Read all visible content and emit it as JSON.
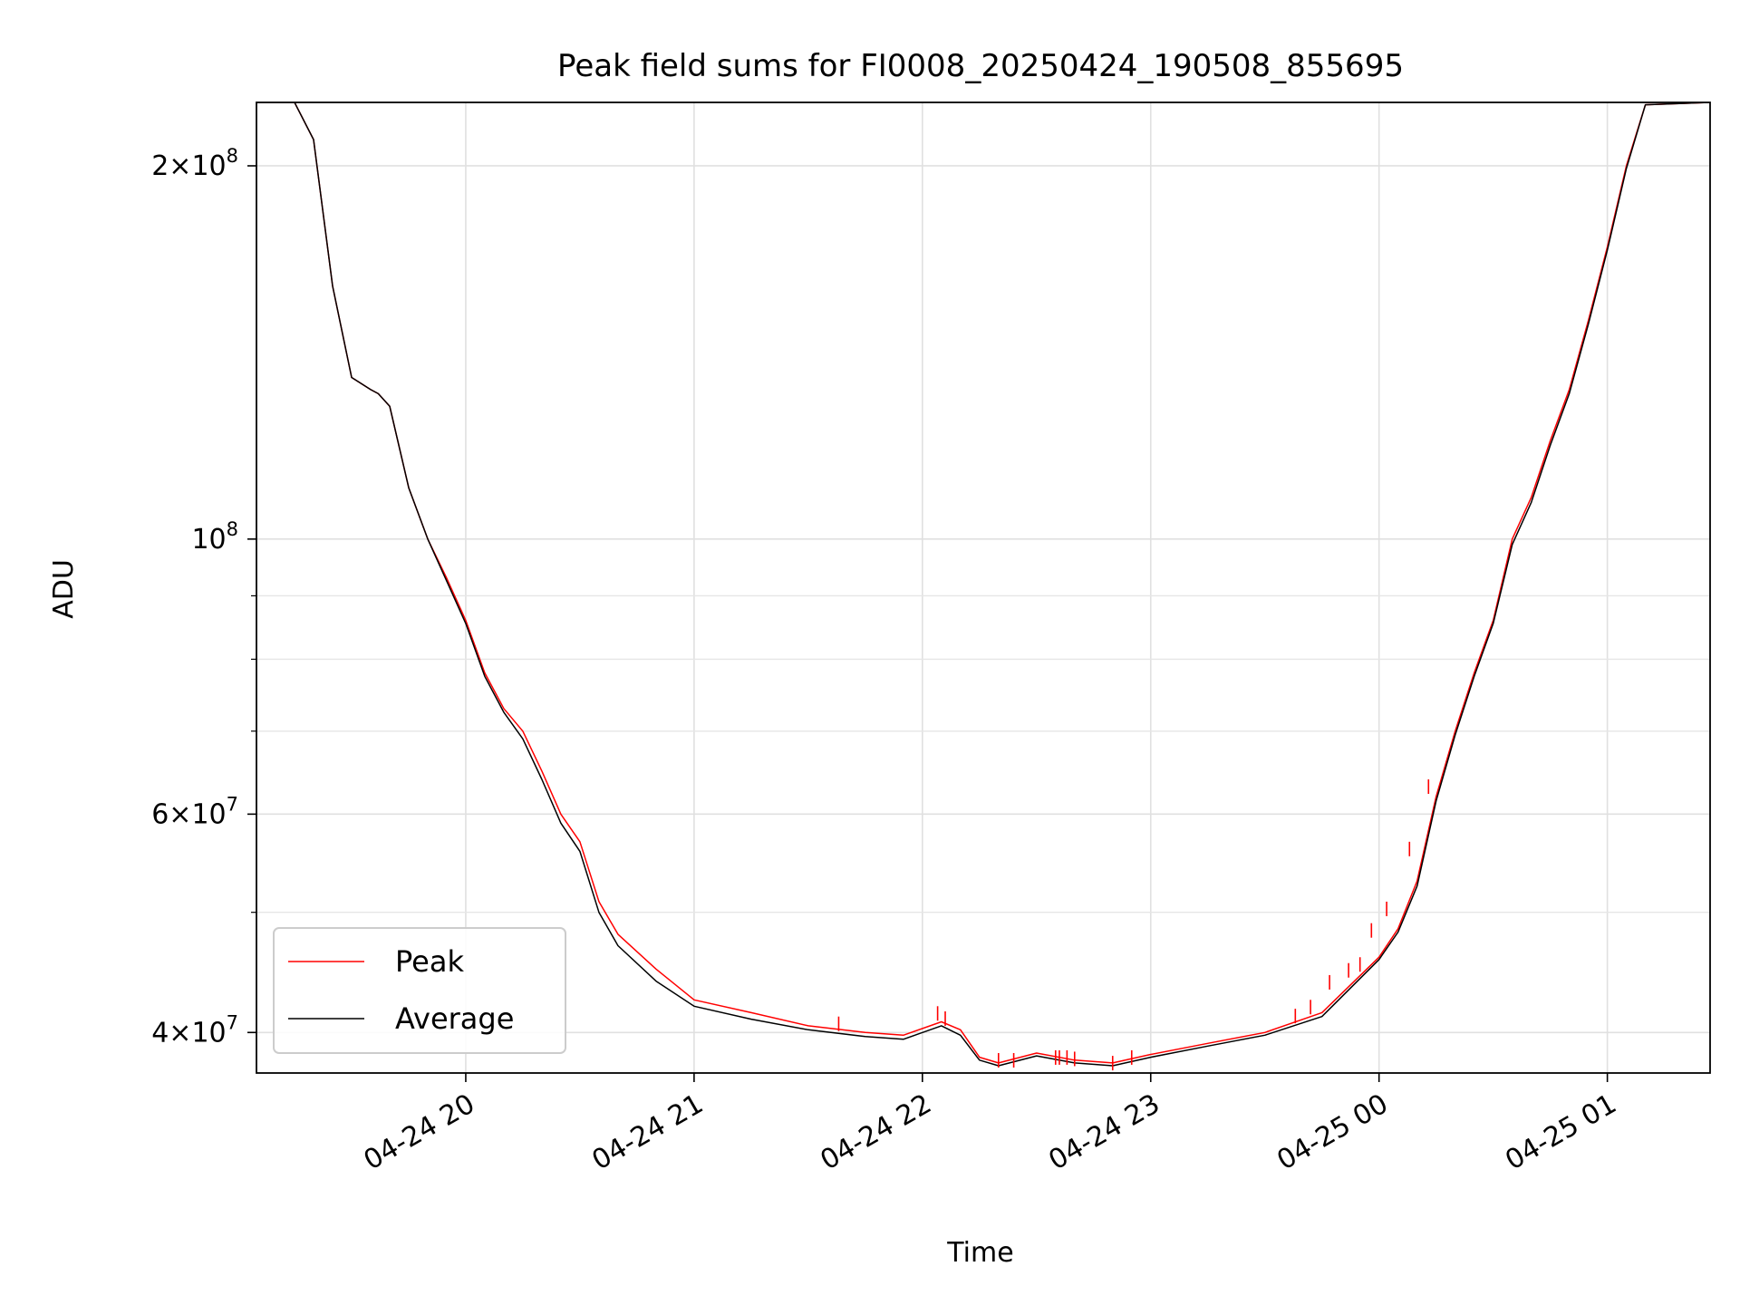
{
  "chart_data": {
    "type": "line",
    "title": "Peak field sums for FI0008_20250424_190508_855695",
    "xlabel": "Time",
    "ylabel": "ADU",
    "xlim": [
      "2025-04-24 19:05",
      "2025-04-25 01:27"
    ],
    "ylim": [
      37100000,
      225000000
    ],
    "yscale": "log",
    "grid": true,
    "legend_loc": "lower left",
    "x_ticks": [
      {
        "t": "2025-04-24 20:00",
        "label": "04-24 20"
      },
      {
        "t": "2025-04-24 21:00",
        "label": "04-24 21"
      },
      {
        "t": "2025-04-24 22:00",
        "label": "04-24 22"
      },
      {
        "t": "2025-04-24 23:00",
        "label": "04-24 23"
      },
      {
        "t": "2025-04-25 00:00",
        "label": "04-25 00"
      },
      {
        "t": "2025-04-25 01:00",
        "label": "04-25 01"
      }
    ],
    "y_ticks": [
      {
        "value": 40000000,
        "mantissa": "4",
        "exp": "7"
      },
      {
        "value": 60000000,
        "mantissa": "6",
        "exp": "7"
      },
      {
        "value": 100000000,
        "mantissa": "",
        "exp": "8"
      },
      {
        "value": 200000000,
        "mantissa": "2",
        "exp": "8"
      }
    ],
    "y_minor": [
      50000000,
      70000000,
      80000000,
      90000000
    ],
    "series": [
      {
        "name": "Peak",
        "color": "#ff0000",
        "x": [
          "2025-04-24 19:05",
          "2025-04-24 19:15",
          "2025-04-24 19:20",
          "2025-04-24 19:25",
          "2025-04-24 19:30",
          "2025-04-24 19:35",
          "2025-04-24 19:37",
          "2025-04-24 19:40",
          "2025-04-24 19:45",
          "2025-04-24 19:50",
          "2025-04-24 19:55",
          "2025-04-24 20:00",
          "2025-04-24 20:05",
          "2025-04-24 20:10",
          "2025-04-24 20:15",
          "2025-04-24 20:20",
          "2025-04-24 20:25",
          "2025-04-24 20:30",
          "2025-04-24 20:35",
          "2025-04-24 20:40",
          "2025-04-24 20:50",
          "2025-04-24 21:00",
          "2025-04-24 21:15",
          "2025-04-24 21:30",
          "2025-04-24 21:45",
          "2025-04-24 21:55",
          "2025-04-24 22:05",
          "2025-04-24 22:10",
          "2025-04-24 22:15",
          "2025-04-24 22:20",
          "2025-04-24 22:30",
          "2025-04-24 22:40",
          "2025-04-24 22:50",
          "2025-04-24 23:00",
          "2025-04-24 23:15",
          "2025-04-24 23:30",
          "2025-04-24 23:45",
          "2025-04-25 00:00",
          "2025-04-25 00:05",
          "2025-04-25 00:10",
          "2025-04-25 00:15",
          "2025-04-25 00:20",
          "2025-04-25 00:25",
          "2025-04-25 00:30",
          "2025-04-25 00:35",
          "2025-04-25 00:40",
          "2025-04-25 00:45",
          "2025-04-25 00:50",
          "2025-04-25 00:55",
          "2025-04-25 01:00",
          "2025-04-25 01:05",
          "2025-04-25 01:10",
          "2025-04-25 01:27"
        ],
        "y": [
          225000000,
          225000000,
          210000000,
          160000000,
          135000000,
          132000000,
          131000000,
          128000000,
          110000000,
          100000000,
          93000000,
          86000000,
          78000000,
          73000000,
          70000000,
          65000000,
          60000000,
          57000000,
          51000000,
          48000000,
          45000000,
          42500000,
          41500000,
          40500000,
          40000000,
          39800000,
          40800000,
          40200000,
          38200000,
          37800000,
          38500000,
          38000000,
          37800000,
          38400000,
          39200000,
          40000000,
          41500000,
          46000000,
          48500000,
          53000000,
          62000000,
          70000000,
          78000000,
          86000000,
          100000000,
          108000000,
          120000000,
          132000000,
          150000000,
          172000000,
          200000000,
          224000000,
          225000000
        ]
      },
      {
        "name": "Average",
        "color": "#000000",
        "x": [
          "2025-04-24 19:05",
          "2025-04-24 19:15",
          "2025-04-24 19:20",
          "2025-04-24 19:25",
          "2025-04-24 19:30",
          "2025-04-24 19:35",
          "2025-04-24 19:37",
          "2025-04-24 19:40",
          "2025-04-24 19:45",
          "2025-04-24 19:50",
          "2025-04-24 19:55",
          "2025-04-24 20:00",
          "2025-04-24 20:05",
          "2025-04-24 20:10",
          "2025-04-24 20:15",
          "2025-04-24 20:20",
          "2025-04-24 20:25",
          "2025-04-24 20:30",
          "2025-04-24 20:35",
          "2025-04-24 20:40",
          "2025-04-24 20:50",
          "2025-04-24 21:00",
          "2025-04-24 21:15",
          "2025-04-24 21:30",
          "2025-04-24 21:45",
          "2025-04-24 21:55",
          "2025-04-24 22:05",
          "2025-04-24 22:10",
          "2025-04-24 22:15",
          "2025-04-24 22:20",
          "2025-04-24 22:30",
          "2025-04-24 22:40",
          "2025-04-24 22:50",
          "2025-04-24 23:00",
          "2025-04-24 23:15",
          "2025-04-24 23:30",
          "2025-04-24 23:45",
          "2025-04-25 00:00",
          "2025-04-25 00:05",
          "2025-04-25 00:10",
          "2025-04-25 00:15",
          "2025-04-25 00:20",
          "2025-04-25 00:25",
          "2025-04-25 00:30",
          "2025-04-25 00:35",
          "2025-04-25 00:40",
          "2025-04-25 00:45",
          "2025-04-25 00:50",
          "2025-04-25 00:55",
          "2025-04-25 01:00",
          "2025-04-25 01:05",
          "2025-04-25 01:10",
          "2025-04-25 01:27"
        ],
        "y": [
          225000000,
          225000000,
          210000000,
          160000000,
          135000000,
          132000000,
          131000000,
          128000000,
          110000000,
          100000000,
          92500000,
          85500000,
          77500000,
          72500000,
          69000000,
          64000000,
          59000000,
          56000000,
          50000000,
          47000000,
          44000000,
          42000000,
          41000000,
          40200000,
          39700000,
          39500000,
          40500000,
          39800000,
          38000000,
          37600000,
          38300000,
          37800000,
          37600000,
          38200000,
          39000000,
          39800000,
          41200000,
          45800000,
          48200000,
          52500000,
          61500000,
          69500000,
          77500000,
          85500000,
          99000000,
          107000000,
          119000000,
          131000000,
          149000000,
          171000000,
          199000000,
          224000000,
          225000000
        ]
      }
    ],
    "spikes": {
      "series": "Peak",
      "x": [
        "2025-04-24 21:38",
        "2025-04-24 22:04",
        "2025-04-24 22:06",
        "2025-04-24 22:20",
        "2025-04-24 22:24",
        "2025-04-24 22:35",
        "2025-04-24 22:36",
        "2025-04-24 22:38",
        "2025-04-24 22:40",
        "2025-04-24 22:50",
        "2025-04-24 22:55",
        "2025-04-24 23:38",
        "2025-04-24 23:42",
        "2025-04-24 23:47",
        "2025-04-24 23:52",
        "2025-04-24 23:55",
        "2025-04-24 23:58",
        "2025-04-25 00:02",
        "2025-04-25 00:08",
        "2025-04-25 00:13"
      ],
      "y": [
        41200000,
        42000000,
        41600000,
        38500000,
        38500000,
        38700000,
        38700000,
        38700000,
        38600000,
        38300000,
        38700000,
        41800000,
        42500000,
        44500000,
        45500000,
        46000000,
        49000000,
        51000000,
        57000000,
        64000000
      ]
    }
  }
}
